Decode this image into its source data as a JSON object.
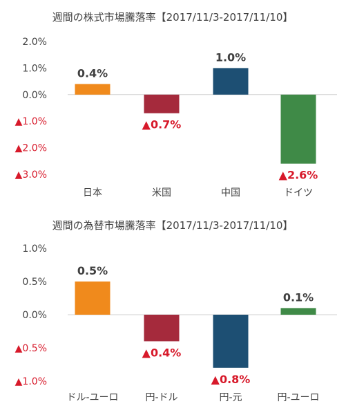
{
  "chart_data": [
    {
      "type": "bar",
      "title": "週間の株式市場騰落率【2017/11/3-2017/11/10】",
      "categories": [
        "日本",
        "米国",
        "中国",
        "ドイツ"
      ],
      "values": [
        0.4,
        -0.7,
        1.0,
        -2.6
      ],
      "value_labels": [
        "0.4%",
        "▲0.7%",
        "1.0%",
        "▲2.6%"
      ],
      "bar_colors": [
        "#f08a1c",
        "#a52a3c",
        "#1d4f73",
        "#3f8a47"
      ],
      "ylim": [
        -3.0,
        2.0
      ],
      "ticks": [
        2.0,
        1.0,
        0.0,
        -1.0,
        -2.0,
        -3.0
      ],
      "tick_labels": [
        "2.0%",
        "1.0%",
        "0.0%",
        "▲1.0%",
        "▲2.0%",
        "▲3.0%"
      ],
      "xlabel": "",
      "ylabel": "",
      "grid": false,
      "legend": "none"
    },
    {
      "type": "bar",
      "title": "週間の為替市場騰落率【2017/11/3-2017/11/10】",
      "categories": [
        "ドル-ユーロ",
        "円-ドル",
        "円-元",
        "円-ユーロ"
      ],
      "values": [
        0.5,
        -0.4,
        -0.8,
        0.1
      ],
      "value_labels": [
        "0.5%",
        "▲0.4%",
        "▲0.8%",
        "0.1%"
      ],
      "bar_colors": [
        "#f08a1c",
        "#a52a3c",
        "#1d4f73",
        "#3f8a47"
      ],
      "ylim": [
        -1.0,
        1.0
      ],
      "ticks": [
        1.0,
        0.5,
        0.0,
        -0.5,
        -1.0
      ],
      "tick_labels": [
        "1.0%",
        "0.5%",
        "0.0%",
        "▲0.5%",
        "▲1.0%"
      ],
      "xlabel": "",
      "ylabel": "",
      "grid": false,
      "legend": "none"
    }
  ],
  "colors": {
    "text": "#404040",
    "negative": "#d7192a",
    "axis": "#d0d0d0"
  }
}
